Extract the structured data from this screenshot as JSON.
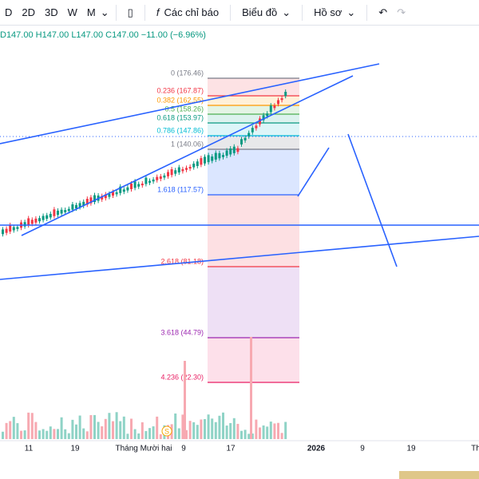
{
  "toolbar": {
    "intervals": [
      "D",
      "2D",
      "3D",
      "W",
      "M"
    ],
    "indicators": "Các chỉ báo",
    "chart": "Biểu đồ",
    "profile": "Hồ sơ"
  },
  "legend": {
    "open": "D147.00",
    "high": "H147.00",
    "low": "L147.00",
    "close": "C147.00",
    "change": "−11.00 (−6.96%)"
  },
  "fib_levels": [
    "0 (176.46)",
    "0.236 (167.87)",
    "0.382 (162.55)",
    "0.5 (158.26)",
    "0.618 (153.97)",
    "0.786 (147.86)",
    "1 (140.06)",
    "1.618 (117.57)",
    "2.618 (81.18)",
    "3.618 (44.79)",
    "4.236 (22.30)"
  ],
  "x_axis": [
    "11",
    "19",
    "Tháng Mười hai",
    "9",
    "17",
    "2026",
    "9",
    "19",
    "Th"
  ],
  "event_marker": "S"
}
